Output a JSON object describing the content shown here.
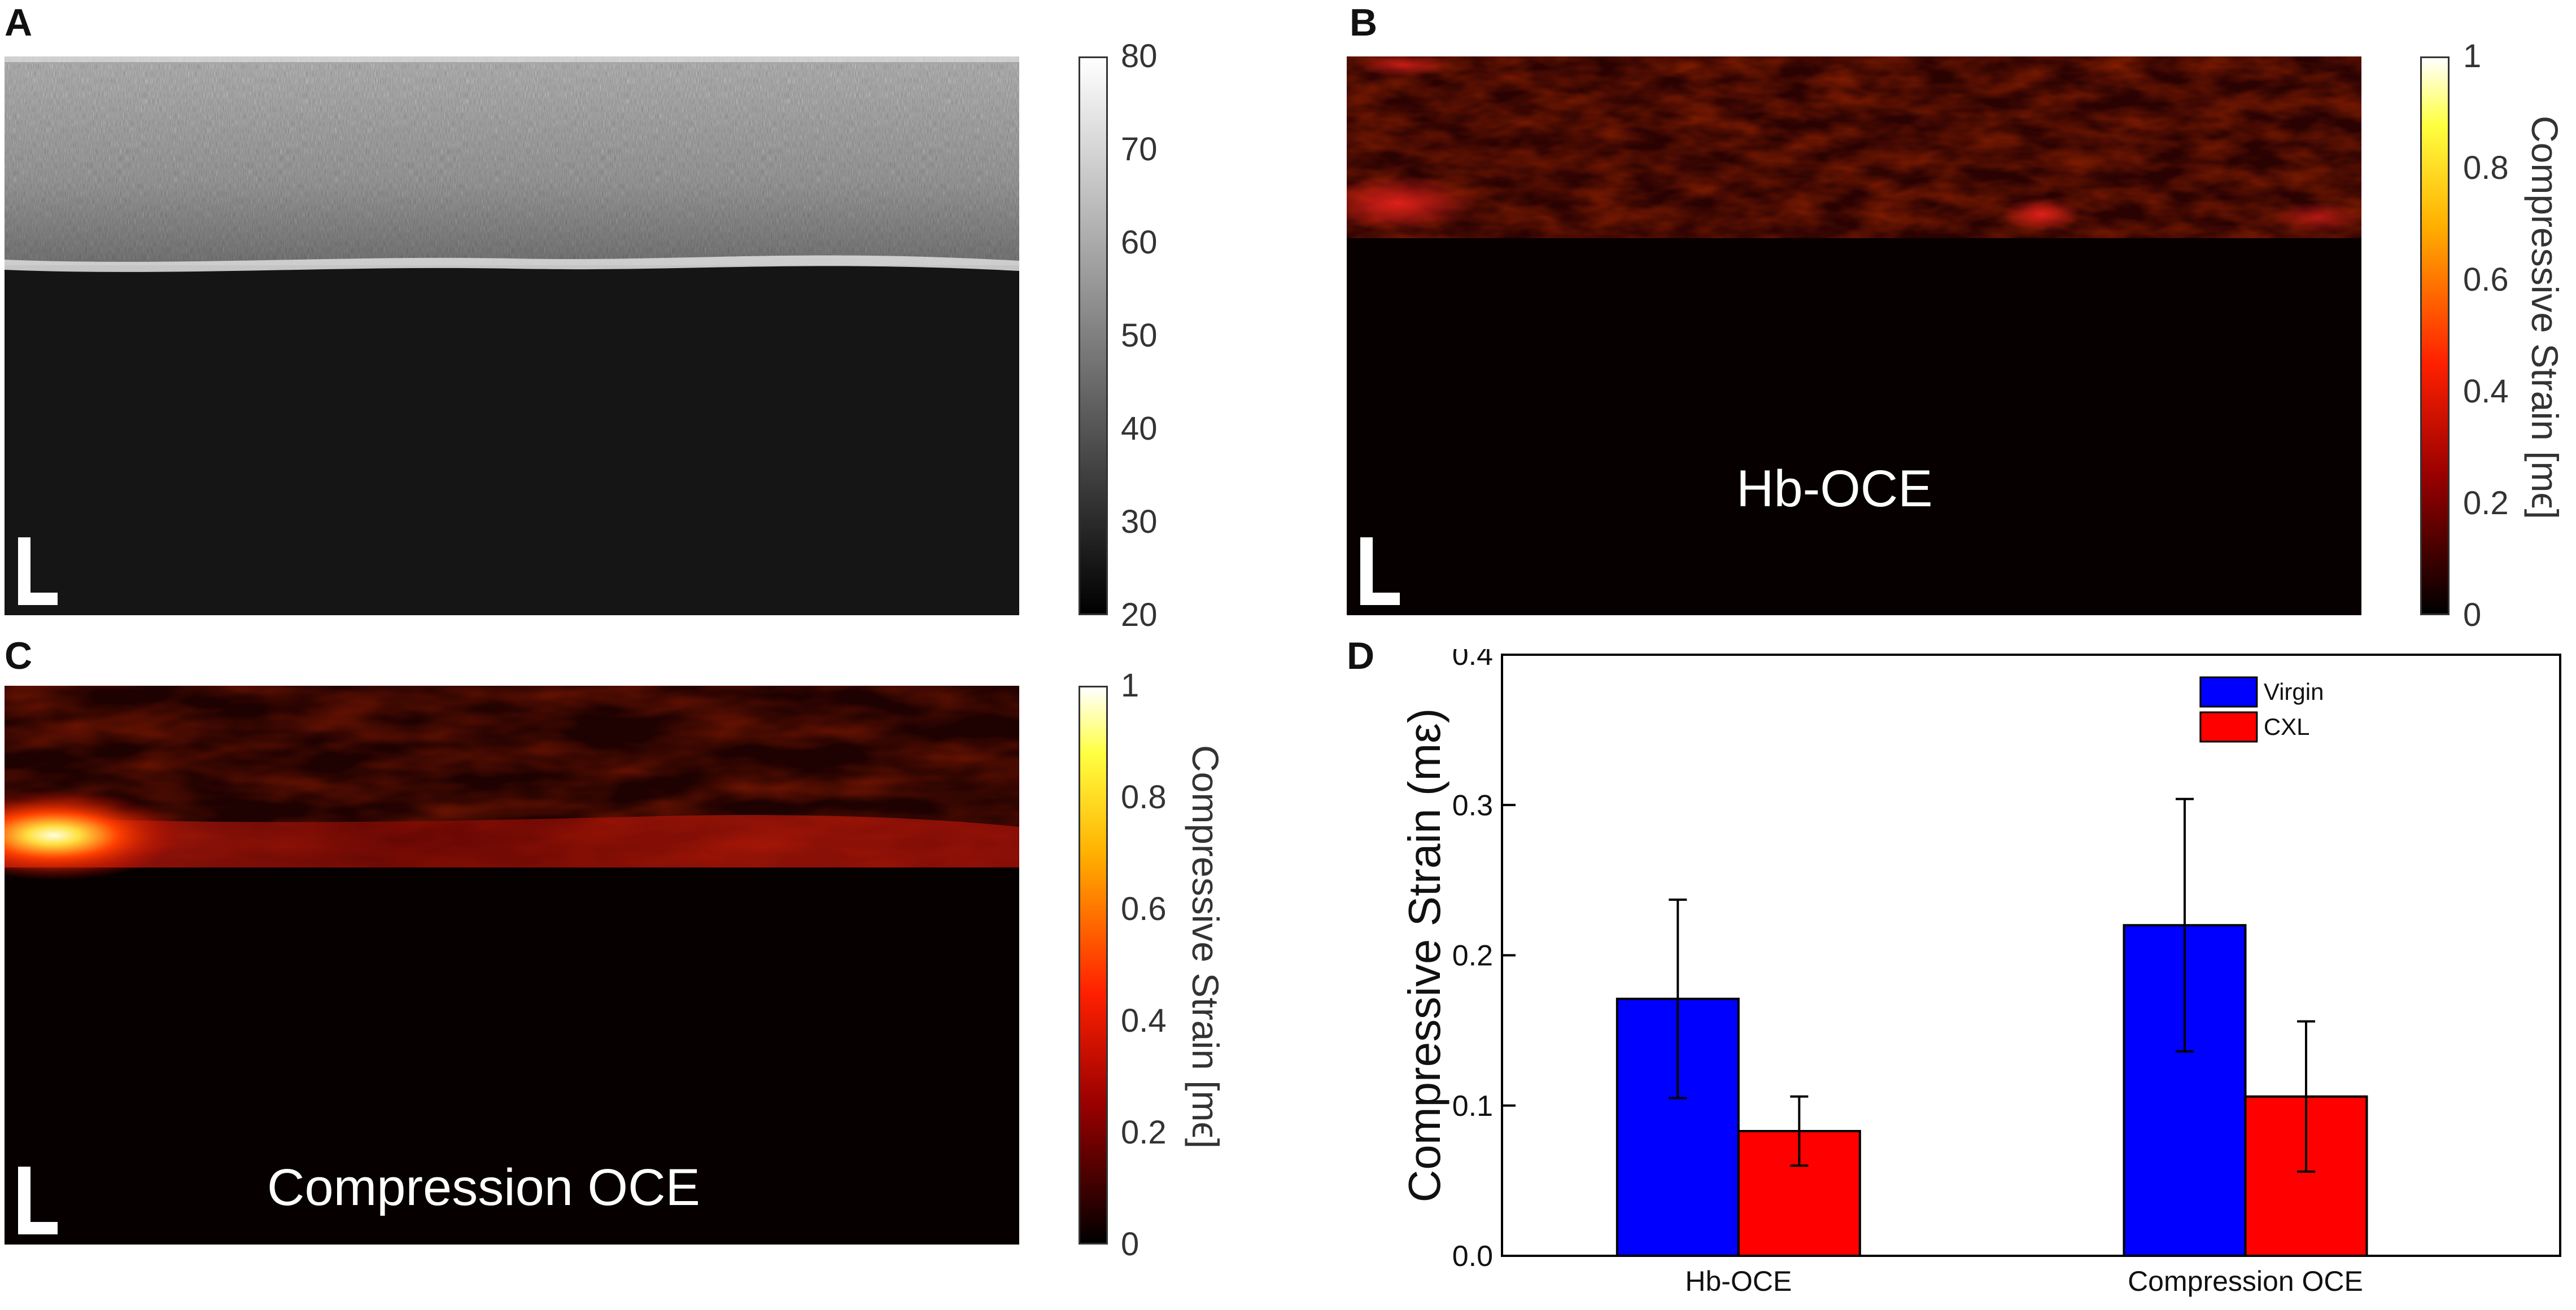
{
  "panels": {
    "A": {
      "letter": "A",
      "scale_marker": "L",
      "colorbar": {
        "ticks": [
          "80",
          "70",
          "60",
          "50",
          "40",
          "30",
          "20"
        ],
        "colormap": "gray"
      }
    },
    "B": {
      "letter": "B",
      "scale_marker": "L",
      "overlay_label": "Hb-OCE",
      "colorbar": {
        "ticks": [
          "1",
          "0.8",
          "0.6",
          "0.4",
          "0.2",
          "0"
        ],
        "label": "Compressive Strain [mϵ]",
        "colormap": "hot"
      }
    },
    "C": {
      "letter": "C",
      "scale_marker": "L",
      "overlay_label": "Compression OCE",
      "colorbar": {
        "ticks": [
          "1",
          "0.8",
          "0.6",
          "0.4",
          "0.2",
          "0"
        ],
        "label": "Compressive Strain [mϵ]",
        "colormap": "hot"
      }
    },
    "D": {
      "letter": "D"
    }
  },
  "chart_data": {
    "type": "bar",
    "categories": [
      "Hb-OCE",
      "Compression OCE"
    ],
    "series": [
      {
        "name": "Virgin",
        "color": "#0000ff",
        "values": [
          0.171,
          0.22
        ],
        "errors": [
          0.066,
          0.084
        ]
      },
      {
        "name": "CXL",
        "color": "#ff0000",
        "values": [
          0.083,
          0.106
        ],
        "errors": [
          0.023,
          0.05
        ]
      }
    ],
    "title": "",
    "xlabel": "",
    "ylabel": "Compressive Strain (mε)",
    "ylim": [
      0,
      0.4
    ],
    "yticks": [
      "0.0",
      "0.1",
      "0.2",
      "0.3",
      "0.4"
    ],
    "grid": false,
    "legend": "top-right"
  }
}
